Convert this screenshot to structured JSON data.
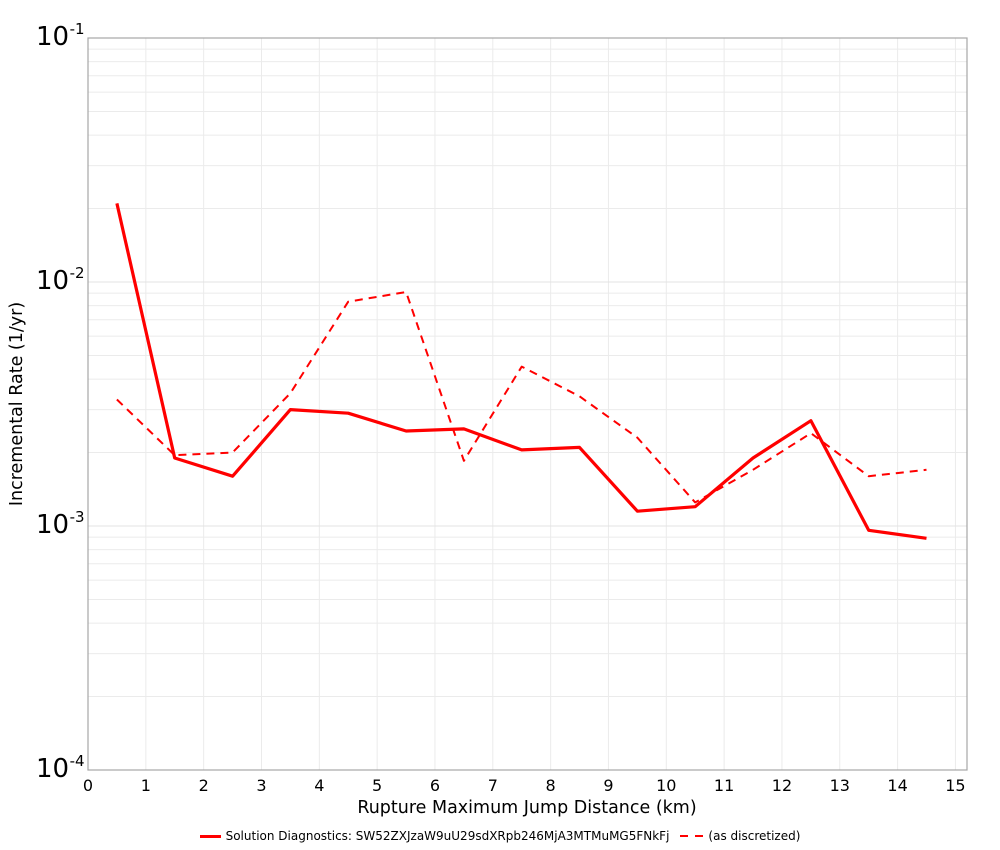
{
  "figure": {
    "background_color": "#ffffff",
    "plot_border_color": "#a6a6a6",
    "gridline_color": "#ebebeb",
    "text_color": "#000000"
  },
  "legend": {
    "position": "bottom-center",
    "items": [
      {
        "label": "Solution Diagnostics: SW52ZXJzaW9uU29sdXRpb246MjA3MTMuMG5FNkFj",
        "line_style": "solid",
        "color": "#ff0000"
      },
      {
        "label": "(as discretized)",
        "line_style": "dashed",
        "color": "#ff0000"
      }
    ]
  },
  "chart_data": {
    "type": "line",
    "title": "",
    "xlabel": "Rupture Maximum Jump Distance (km)",
    "ylabel": "Incremental Rate (1/yr)",
    "x_scale": "linear",
    "y_scale": "log",
    "xlim": [
      0,
      15.2
    ],
    "ylim": [
      0.0001,
      0.1
    ],
    "grid": true,
    "x_ticks": [
      {
        "value": 0,
        "label": "0"
      },
      {
        "value": 1,
        "label": "1"
      },
      {
        "value": 2,
        "label": "2"
      },
      {
        "value": 3,
        "label": "3"
      },
      {
        "value": 4,
        "label": "4"
      },
      {
        "value": 5,
        "label": "5"
      },
      {
        "value": 6,
        "label": "6"
      },
      {
        "value": 7,
        "label": "7"
      },
      {
        "value": 8,
        "label": "8"
      },
      {
        "value": 9,
        "label": "9"
      },
      {
        "value": 10,
        "label": "10"
      },
      {
        "value": 11,
        "label": "11"
      },
      {
        "value": 12,
        "label": "12"
      },
      {
        "value": 13,
        "label": "13"
      },
      {
        "value": 14,
        "label": "14"
      },
      {
        "value": 15,
        "label": "15"
      }
    ],
    "y_ticks": [
      {
        "value": 0.1,
        "base": "10",
        "exp": "-1"
      },
      {
        "value": 0.01,
        "base": "10",
        "exp": "-2"
      },
      {
        "value": 0.001,
        "base": "10",
        "exp": "-3"
      },
      {
        "value": 0.0001,
        "base": "10",
        "exp": "-4"
      }
    ],
    "x": [
      0.5,
      1.5,
      2.5,
      3.5,
      4.5,
      5.5,
      6.5,
      7.5,
      8.5,
      9.5,
      10.5,
      11.5,
      12.5,
      13.5,
      14.5
    ],
    "series": [
      {
        "name": "Solution Diagnostics: SW52ZXJzaW9uU29sdXRpb246MjA3MTMuMG5FNkFj",
        "style": "solid",
        "color": "#ff0000",
        "line_width": 3.2,
        "values": [
          0.021,
          0.0019,
          0.0016,
          0.003,
          0.0029,
          0.00245,
          0.0025,
          0.00205,
          0.0021,
          0.00115,
          0.0012,
          0.0019,
          0.0027,
          0.00096,
          0.00089
        ]
      },
      {
        "name": "(as discretized)",
        "style": "dashed",
        "color": "#ff0000",
        "line_width": 2,
        "values": [
          0.0033,
          0.00195,
          0.002,
          0.0035,
          0.0083,
          0.0091,
          0.00185,
          0.0045,
          0.0034,
          0.0023,
          0.00125,
          0.0017,
          0.0024,
          0.0016,
          0.0017
        ]
      }
    ]
  }
}
